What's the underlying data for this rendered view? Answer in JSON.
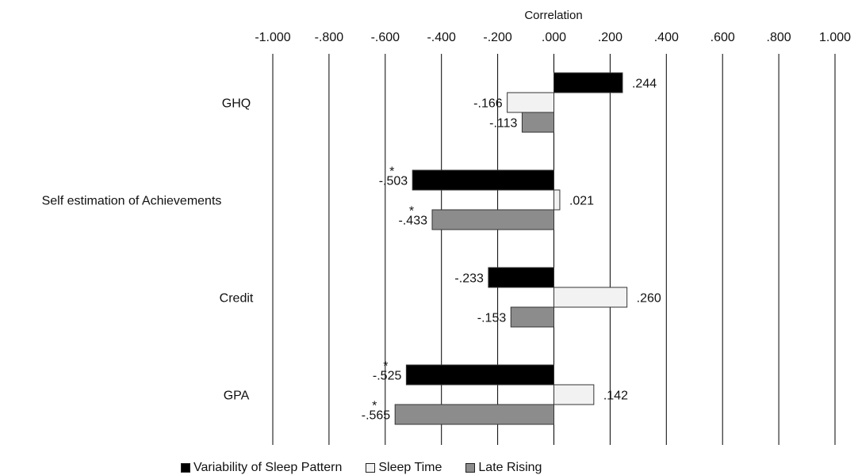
{
  "chart_data": {
    "type": "bar",
    "orientation": "horizontal",
    "title": "Correlation",
    "xlim": [
      -1.0,
      1.0
    ],
    "x_ticks": [
      -1.0,
      -0.8,
      -0.6,
      -0.4,
      -0.2,
      0.0,
      0.2,
      0.4,
      0.6,
      0.8,
      1.0
    ],
    "x_tick_labels": [
      "-1.000",
      "-.800",
      "-.600",
      "-.400",
      "-.200",
      ".000",
      ".200",
      ".400",
      ".600",
      ".800",
      "1.000"
    ],
    "grid": "vertical",
    "legend_position": "bottom",
    "categories": [
      "GHQ",
      "Self estimation of Achievements",
      "Credit",
      "GPA"
    ],
    "series": [
      {
        "name": "Variability of Sleep Pattern",
        "color": "#000000",
        "values": [
          0.244,
          -0.503,
          -0.233,
          -0.525
        ],
        "labels": [
          ".244",
          "-.503",
          "-.233",
          "-.525"
        ],
        "significant": [
          false,
          true,
          false,
          true
        ]
      },
      {
        "name": "Sleep Time",
        "color": "#f2f2f2",
        "values": [
          -0.166,
          0.021,
          0.26,
          0.142
        ],
        "labels": [
          "-.166",
          ".021",
          ".260",
          ".142"
        ],
        "significant": [
          false,
          false,
          false,
          false
        ]
      },
      {
        "name": "Late Rising",
        "color": "#8c8c8c",
        "values": [
          -0.113,
          -0.433,
          -0.153,
          -0.565
        ],
        "labels": [
          "-.113",
          "-.433",
          "-.153",
          "-.565"
        ],
        "significant": [
          false,
          true,
          false,
          true
        ]
      }
    ],
    "significance_marker": "*"
  }
}
